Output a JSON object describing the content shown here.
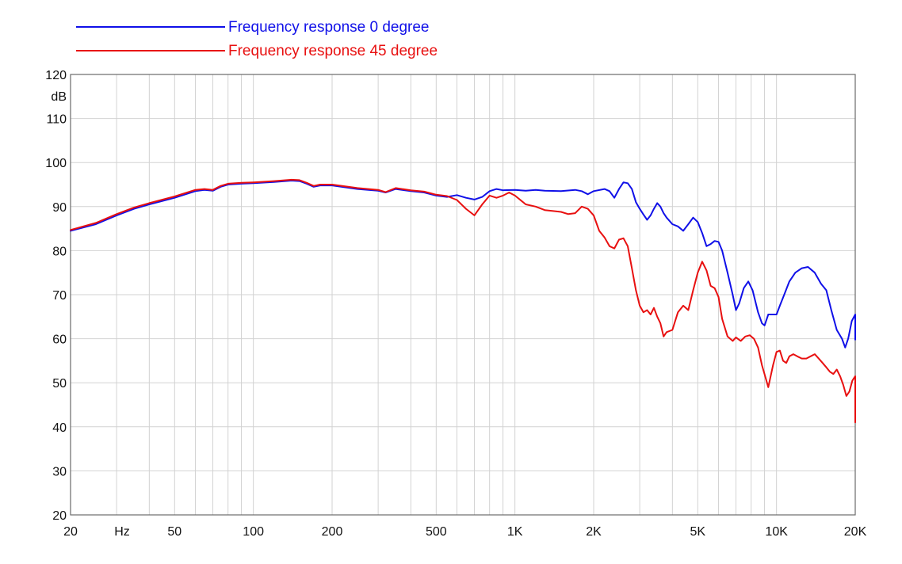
{
  "chart_data": {
    "type": "line",
    "xscale": "log",
    "xlim": [
      20,
      20000
    ],
    "ylim": [
      20,
      120
    ],
    "grid": true,
    "legend_position": "top-left",
    "ylabel": "dB",
    "xlabel": "Hz",
    "x_ticks": [
      {
        "value": 20,
        "label": "20"
      },
      {
        "value": 50,
        "label": "50"
      },
      {
        "value": 100,
        "label": "100"
      },
      {
        "value": 200,
        "label": "200"
      },
      {
        "value": 500,
        "label": "500"
      },
      {
        "value": 1000,
        "label": "1K"
      },
      {
        "value": 2000,
        "label": "2K"
      },
      {
        "value": 5000,
        "label": "5K"
      },
      {
        "value": 10000,
        "label": "10K"
      },
      {
        "value": 20000,
        "label": "20K"
      }
    ],
    "y_ticks": [
      {
        "value": 20,
        "label": "20"
      },
      {
        "value": 30,
        "label": "30"
      },
      {
        "value": 40,
        "label": "40"
      },
      {
        "value": 50,
        "label": "50"
      },
      {
        "value": 60,
        "label": "60"
      },
      {
        "value": 70,
        "label": "70"
      },
      {
        "value": 80,
        "label": "80"
      },
      {
        "value": 90,
        "label": "90"
      },
      {
        "value": 100,
        "label": "100"
      },
      {
        "value": 110,
        "label": "110"
      },
      {
        "value": 120,
        "label": "120"
      }
    ],
    "series": [
      {
        "name": "Frequency response 0 degree",
        "color": "#1010e8",
        "points": [
          [
            20,
            84.5
          ],
          [
            25,
            86
          ],
          [
            30,
            88
          ],
          [
            35,
            89.5
          ],
          [
            40,
            90.5
          ],
          [
            50,
            92
          ],
          [
            60,
            93.5
          ],
          [
            65,
            93.8
          ],
          [
            70,
            93.6
          ],
          [
            75,
            94.5
          ],
          [
            80,
            95
          ],
          [
            90,
            95.2
          ],
          [
            100,
            95.3
          ],
          [
            120,
            95.6
          ],
          [
            140,
            95.9
          ],
          [
            150,
            95.8
          ],
          [
            160,
            95.2
          ],
          [
            170,
            94.5
          ],
          [
            180,
            94.8
          ],
          [
            200,
            94.8
          ],
          [
            250,
            94
          ],
          [
            300,
            93.6
          ],
          [
            320,
            93.2
          ],
          [
            350,
            94
          ],
          [
            400,
            93.5
          ],
          [
            450,
            93.2
          ],
          [
            500,
            92.5
          ],
          [
            550,
            92.2
          ],
          [
            600,
            92.6
          ],
          [
            650,
            92
          ],
          [
            700,
            91.6
          ],
          [
            750,
            92.2
          ],
          [
            800,
            93.5
          ],
          [
            850,
            94
          ],
          [
            900,
            93.7
          ],
          [
            1000,
            93.8
          ],
          [
            1100,
            93.6
          ],
          [
            1200,
            93.8
          ],
          [
            1300,
            93.6
          ],
          [
            1500,
            93.5
          ],
          [
            1700,
            93.8
          ],
          [
            1800,
            93.5
          ],
          [
            1900,
            92.8
          ],
          [
            2000,
            93.5
          ],
          [
            2200,
            94
          ],
          [
            2300,
            93.5
          ],
          [
            2400,
            92
          ],
          [
            2500,
            94
          ],
          [
            2600,
            95.5
          ],
          [
            2700,
            95.3
          ],
          [
            2800,
            94
          ],
          [
            2900,
            91
          ],
          [
            3000,
            89.5
          ],
          [
            3100,
            88.2
          ],
          [
            3200,
            87
          ],
          [
            3300,
            88
          ],
          [
            3400,
            89.5
          ],
          [
            3500,
            90.8
          ],
          [
            3600,
            90
          ],
          [
            3700,
            88.5
          ],
          [
            3800,
            87.5
          ],
          [
            4000,
            86
          ],
          [
            4200,
            85.5
          ],
          [
            4400,
            84.5
          ],
          [
            4600,
            86
          ],
          [
            4800,
            87.5
          ],
          [
            5000,
            86.5
          ],
          [
            5200,
            84
          ],
          [
            5400,
            81
          ],
          [
            5600,
            81.5
          ],
          [
            5800,
            82.2
          ],
          [
            6000,
            82
          ],
          [
            6200,
            80
          ],
          [
            6500,
            75
          ],
          [
            6800,
            70
          ],
          [
            7000,
            66.5
          ],
          [
            7200,
            68
          ],
          [
            7500,
            71.5
          ],
          [
            7800,
            73
          ],
          [
            8100,
            71
          ],
          [
            8500,
            66
          ],
          [
            8800,
            63.5
          ],
          [
            9000,
            63
          ],
          [
            9300,
            65.5
          ],
          [
            9600,
            65.5
          ],
          [
            10000,
            65.5
          ],
          [
            10300,
            67.5
          ],
          [
            10700,
            70
          ],
          [
            11200,
            73
          ],
          [
            11800,
            75
          ],
          [
            12500,
            76
          ],
          [
            13200,
            76.3
          ],
          [
            14000,
            75
          ],
          [
            14800,
            72.5
          ],
          [
            15500,
            71
          ],
          [
            16200,
            66.5
          ],
          [
            17000,
            62
          ],
          [
            17800,
            60
          ],
          [
            18300,
            58
          ],
          [
            18800,
            60
          ],
          [
            19400,
            64
          ],
          [
            20000,
            65.5
          ],
          [
            20600,
            64.5
          ],
          [
            21300,
            62
          ],
          [
            22000,
            60.3
          ],
          [
            23000,
            59.8
          ]
        ]
      },
      {
        "name": "Frequency response 45 degree",
        "color": "#e81010",
        "points": [
          [
            20,
            84.7
          ],
          [
            25,
            86.3
          ],
          [
            30,
            88.3
          ],
          [
            35,
            89.8
          ],
          [
            40,
            90.8
          ],
          [
            50,
            92.3
          ],
          [
            60,
            93.8
          ],
          [
            65,
            94
          ],
          [
            70,
            93.8
          ],
          [
            75,
            94.7
          ],
          [
            80,
            95.2
          ],
          [
            90,
            95.4
          ],
          [
            100,
            95.5
          ],
          [
            120,
            95.8
          ],
          [
            140,
            96.1
          ],
          [
            150,
            96
          ],
          [
            160,
            95.4
          ],
          [
            170,
            94.7
          ],
          [
            180,
            95
          ],
          [
            200,
            95
          ],
          [
            250,
            94.2
          ],
          [
            300,
            93.8
          ],
          [
            320,
            93.3
          ],
          [
            350,
            94.2
          ],
          [
            400,
            93.7
          ],
          [
            450,
            93.4
          ],
          [
            500,
            92.7
          ],
          [
            550,
            92.4
          ],
          [
            600,
            91.5
          ],
          [
            650,
            89.5
          ],
          [
            700,
            88
          ],
          [
            750,
            90.5
          ],
          [
            800,
            92.5
          ],
          [
            850,
            92
          ],
          [
            900,
            92.5
          ],
          [
            950,
            93.2
          ],
          [
            1000,
            92.5
          ],
          [
            1100,
            90.5
          ],
          [
            1200,
            90
          ],
          [
            1300,
            89.2
          ],
          [
            1400,
            89
          ],
          [
            1500,
            88.8
          ],
          [
            1600,
            88.3
          ],
          [
            1700,
            88.5
          ],
          [
            1800,
            90
          ],
          [
            1900,
            89.5
          ],
          [
            2000,
            88
          ],
          [
            2100,
            84.5
          ],
          [
            2200,
            83
          ],
          [
            2300,
            81
          ],
          [
            2400,
            80.5
          ],
          [
            2500,
            82.5
          ],
          [
            2600,
            82.8
          ],
          [
            2700,
            81
          ],
          [
            2800,
            76
          ],
          [
            2900,
            71
          ],
          [
            3000,
            67.5
          ],
          [
            3100,
            66
          ],
          [
            3200,
            66.5
          ],
          [
            3300,
            65.5
          ],
          [
            3400,
            67
          ],
          [
            3500,
            65
          ],
          [
            3600,
            63.5
          ],
          [
            3700,
            60.5
          ],
          [
            3800,
            61.5
          ],
          [
            4000,
            62
          ],
          [
            4200,
            66
          ],
          [
            4400,
            67.5
          ],
          [
            4600,
            66.5
          ],
          [
            4800,
            71
          ],
          [
            5000,
            75
          ],
          [
            5200,
            77.5
          ],
          [
            5400,
            75.5
          ],
          [
            5600,
            72
          ],
          [
            5800,
            71.5
          ],
          [
            6000,
            69.5
          ],
          [
            6200,
            64.5
          ],
          [
            6500,
            60.5
          ],
          [
            6800,
            59.5
          ],
          [
            7000,
            60.3
          ],
          [
            7300,
            59.5
          ],
          [
            7600,
            60.5
          ],
          [
            7900,
            60.8
          ],
          [
            8200,
            60
          ],
          [
            8500,
            58
          ],
          [
            8800,
            54
          ],
          [
            9100,
            51
          ],
          [
            9300,
            49
          ],
          [
            9700,
            54
          ],
          [
            10000,
            57
          ],
          [
            10300,
            57.3
          ],
          [
            10600,
            55
          ],
          [
            10900,
            54.5
          ],
          [
            11200,
            56
          ],
          [
            11600,
            56.5
          ],
          [
            12000,
            56
          ],
          [
            12500,
            55.5
          ],
          [
            13000,
            55.5
          ],
          [
            13500,
            56
          ],
          [
            14000,
            56.5
          ],
          [
            14500,
            55.5
          ],
          [
            15000,
            54.5
          ],
          [
            15500,
            53.5
          ],
          [
            16000,
            52.5
          ],
          [
            16500,
            52
          ],
          [
            17000,
            53
          ],
          [
            17500,
            51.5
          ],
          [
            18000,
            49.5
          ],
          [
            18500,
            47
          ],
          [
            19000,
            48
          ],
          [
            19500,
            50.5
          ],
          [
            20000,
            51.5
          ],
          [
            20500,
            51
          ],
          [
            21000,
            49
          ],
          [
            21500,
            46
          ],
          [
            22000,
            44.5
          ],
          [
            22500,
            45.8
          ],
          [
            23000,
            45.5
          ],
          [
            23500,
            43
          ],
          [
            24000,
            41.5
          ],
          [
            24500,
            41
          ]
        ]
      }
    ]
  }
}
